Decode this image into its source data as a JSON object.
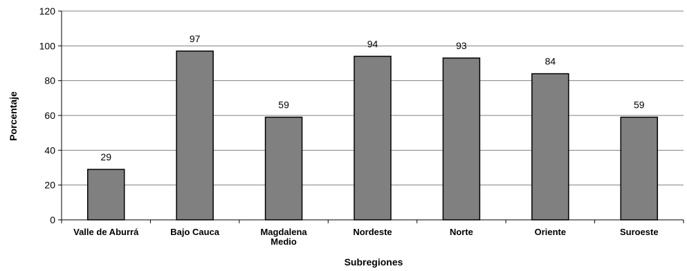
{
  "chart_data": {
    "type": "bar",
    "title": "",
    "xlabel": "Subregiones",
    "ylabel": "Porcentaje",
    "categories": [
      [
        "Valle de Aburrá"
      ],
      [
        "Bajo Cauca"
      ],
      [
        "Magdalena",
        "Medio"
      ],
      [
        "Nordeste"
      ],
      [
        "Norte"
      ],
      [
        "Oriente"
      ],
      [
        "Suroeste"
      ]
    ],
    "values": [
      29,
      97,
      59,
      94,
      93,
      84,
      59
    ],
    "ylim": [
      0,
      120
    ],
    "yticks": [
      0,
      20,
      40,
      60,
      80,
      100,
      120
    ],
    "grid": true,
    "bar_color": "#808080",
    "bar_edge_color": "#000000",
    "gridline_color": "#808080"
  }
}
